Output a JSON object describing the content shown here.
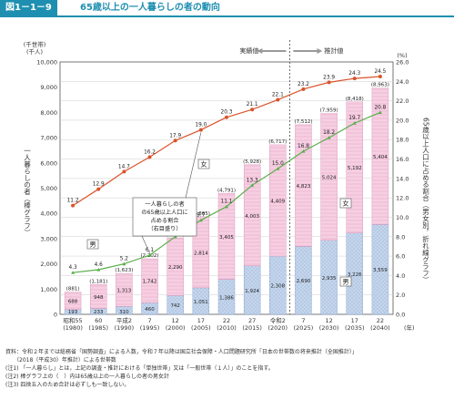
{
  "header": {
    "figure_no": "図1－1－9",
    "title": "65歳以上の一人暮らしの者の動向"
  },
  "chart_data": {
    "type": "bar",
    "categories": [
      {
        "top": "昭和55",
        "bottom": "(1980)"
      },
      {
        "top": "60",
        "bottom": "(1985)"
      },
      {
        "top": "平成2",
        "bottom": "(1990)"
      },
      {
        "top": "7",
        "bottom": "(1995)"
      },
      {
        "top": "12",
        "bottom": "(2000)"
      },
      {
        "top": "17",
        "bottom": "(2005)"
      },
      {
        "top": "22",
        "bottom": "(2010)"
      },
      {
        "top": "27",
        "bottom": "(2015)"
      },
      {
        "top": "令和2",
        "bottom": "(2020)"
      },
      {
        "top": "7",
        "bottom": "(2025)"
      },
      {
        "top": "12",
        "bottom": "(2030)"
      },
      {
        "top": "17",
        "bottom": "(2035)"
      },
      {
        "top": "22",
        "bottom": "(2040)"
      }
    ],
    "x_unit": "(年)",
    "series": [
      {
        "name": "男",
        "values": [
          193,
          233,
          310,
          460,
          742,
          1051,
          1386,
          1924,
          2308,
          2690,
          2935,
          3226,
          3559
        ]
      },
      {
        "name": "女",
        "values": [
          688,
          948,
          1313,
          1742,
          2290,
          2814,
          3405,
          4003,
          4409,
          4823,
          5024,
          5192,
          5404
        ]
      }
    ],
    "totals_text": [
      "(881)",
      "(1,181)",
      "(1,623)",
      "(2,202)",
      "(3,032)",
      "(3,865)",
      "(4,791)",
      "(5,928)",
      "(6,717)",
      "(7,512)",
      "(7,959)",
      "(8,418)",
      "(8,963)"
    ],
    "male_labels": [
      "193",
      "233",
      "310",
      "460",
      "742",
      "1,051",
      "1,386",
      "1,924",
      "2,308",
      "2,690",
      "2,935",
      "3,226",
      "3,559"
    ],
    "female_labels": [
      "688",
      "948",
      "1,313",
      "1,742",
      "2,290",
      "2,814",
      "3,405",
      "4,003",
      "4,409",
      "4,823",
      "5,024",
      "5,192",
      "5,404"
    ],
    "line_series": [
      {
        "name": "女",
        "values": [
          11.2,
          12.9,
          14.7,
          16.2,
          17.9,
          19.0,
          20.3,
          21.1,
          22.1,
          23.2,
          23.9,
          24.3,
          24.5
        ],
        "color": "#d9542b"
      },
      {
        "name": "男",
        "values": [
          4.3,
          4.6,
          5.2,
          6.1,
          8.0,
          9.7,
          11.1,
          13.3,
          15.0,
          16.8,
          18.2,
          19.7,
          20.8
        ],
        "color": "#5aae4a"
      }
    ],
    "female_pct_labels": [
      "11.2",
      "12.9",
      "14.7",
      "16.2",
      "17.9",
      "19.0",
      "20.3",
      "21.1",
      "22.1",
      "23.2",
      "23.9",
      "24.3",
      "24.5"
    ],
    "male_pct_labels": [
      "4.3",
      "4.6",
      "5.2",
      "6.1",
      "8.0",
      "9.7",
      "11.1",
      "13.3",
      "15.0",
      "16.8",
      "18.2",
      "19.7",
      "20.8"
    ],
    "left_axis": {
      "unit_line1": "(千世帯)",
      "unit_line2": "(千人)",
      "ticks": [
        "0",
        "1,000",
        "2,000",
        "3,000",
        "4,000",
        "5,000",
        "6,000",
        "7,000",
        "8,000",
        "9,000",
        "10,000"
      ],
      "label": "一人暮らしの者（棒グラフ）",
      "range": [
        0,
        10000
      ]
    },
    "right_axis": {
      "unit": "(%)",
      "ticks": [
        "0.0",
        "2.0",
        "4.0",
        "6.0",
        "8.0",
        "10.0",
        "12.0",
        "14.0",
        "16.0",
        "18.0",
        "20.0",
        "22.0",
        "24.0",
        "26.0"
      ],
      "label": "65歳以上人口に占める割合（男女別，折れ線グラフ）",
      "range": [
        0,
        26
      ]
    },
    "legend": {
      "actual": "実績値",
      "estimate": "推計値",
      "female_tag": "女",
      "male_tag": "男",
      "callout_lines": [
        "一人暮らしの者",
        "の65歳以上人口に",
        "占める割合",
        "（右目盛り）"
      ]
    },
    "colors": {
      "female_bar": "#f6cfe2",
      "male_bar": "#c5d6ec",
      "female_line": "#d9542b",
      "male_line": "#5aae4a",
      "accent": "#1e8fb0"
    }
  },
  "notes": [
    "資料：令和２年までは総務省「国勢調査」による人数，令和７年以降は国立社会保障・人口問題研究所「日本の世帯数の将来推計（全国推計）」",
    "　　（2018（平成30）年推計）による世帯数",
    "(注1) 「一人暮らし」とは，上記の調査・推計における「単独世帯」又は「一般世帯（１人）」のことを指す。",
    "(注2) 棒グラフ上の（　）内は65歳以上の一人暮らしの者の男女計",
    "(注3) 四捨五入のため合計は必ずしも一致しない。"
  ]
}
